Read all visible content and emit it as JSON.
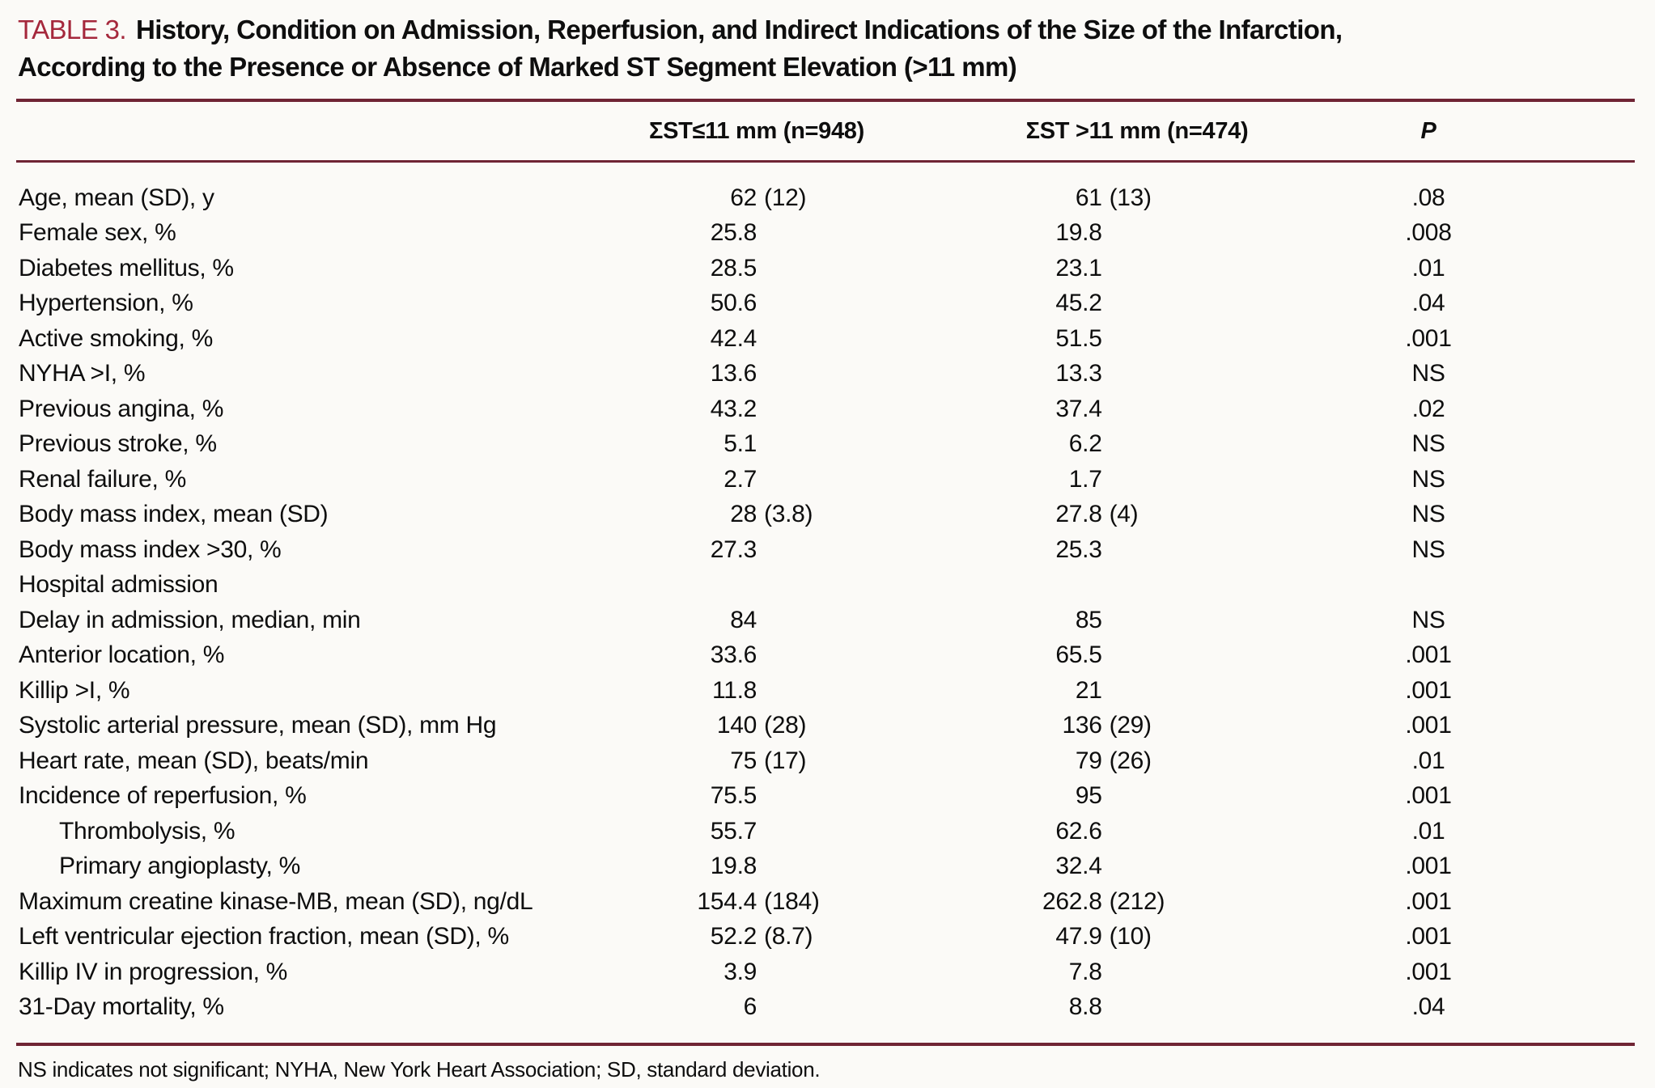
{
  "title": {
    "label": "TABLE 3.",
    "line1": "History, Condition on Admission, Reperfusion, and Indirect Indications of the Size of the Infarction,",
    "line2": "According to the Presence or Absence of Marked ST Segment Elevation (>11 mm)"
  },
  "header": {
    "group1": "ΣST≤11 mm (n=948)",
    "group2": "ΣST >11 mm (n=474)",
    "p": "P"
  },
  "rows": [
    {
      "label": "Age, mean (SD), y",
      "indent": false,
      "v1": "62",
      "sd1": "(12)",
      "v2": "61",
      "sd2": "(13)",
      "p": ".08"
    },
    {
      "label": "Female sex, %",
      "indent": false,
      "v1": "25.8",
      "sd1": "",
      "v2": "19.8",
      "sd2": "",
      "p": ".008"
    },
    {
      "label": "Diabetes mellitus, %",
      "indent": false,
      "v1": "28.5",
      "sd1": "",
      "v2": "23.1",
      "sd2": "",
      "p": ".01"
    },
    {
      "label": "Hypertension, %",
      "indent": false,
      "v1": "50.6",
      "sd1": "",
      "v2": "45.2",
      "sd2": "",
      "p": ".04"
    },
    {
      "label": "Active smoking, %",
      "indent": false,
      "v1": "42.4",
      "sd1": "",
      "v2": "51.5",
      "sd2": "",
      "p": ".001"
    },
    {
      "label": "NYHA >I, %",
      "indent": false,
      "v1": "13.6",
      "sd1": "",
      "v2": "13.3",
      "sd2": "",
      "p": "NS"
    },
    {
      "label": "Previous angina, %",
      "indent": false,
      "v1": "43.2",
      "sd1": "",
      "v2": "37.4",
      "sd2": "",
      "p": ".02"
    },
    {
      "label": "Previous stroke, %",
      "indent": false,
      "v1": "5.1",
      "sd1": "",
      "v2": "6.2",
      "sd2": "",
      "p": "NS"
    },
    {
      "label": "Renal failure, %",
      "indent": false,
      "v1": "2.7",
      "sd1": "",
      "v2": "1.7",
      "sd2": "",
      "p": "NS"
    },
    {
      "label": "Body mass index, mean (SD)",
      "indent": false,
      "v1": "28",
      "sd1": "(3.8)",
      "v2": "27.8",
      "sd2": "(4)",
      "p": "NS"
    },
    {
      "label": "Body mass index >30, %",
      "indent": false,
      "v1": "27.3",
      "sd1": "",
      "v2": "25.3",
      "sd2": "",
      "p": "NS"
    },
    {
      "label": "Hospital admission",
      "indent": false,
      "v1": "",
      "sd1": "",
      "v2": "",
      "sd2": "",
      "p": ""
    },
    {
      "label": "Delay in admission, median, min",
      "indent": false,
      "v1": "84",
      "sd1": "",
      "v2": "85",
      "sd2": "",
      "p": "NS"
    },
    {
      "label": "Anterior location, %",
      "indent": false,
      "v1": "33.6",
      "sd1": "",
      "v2": "65.5",
      "sd2": "",
      "p": ".001"
    },
    {
      "label": "Killip >I, %",
      "indent": false,
      "v1": "11.8",
      "sd1": "",
      "v2": "21",
      "sd2": "",
      "p": ".001"
    },
    {
      "label": "Systolic arterial pressure, mean (SD), mm Hg",
      "indent": false,
      "v1": "140",
      "sd1": "(28)",
      "v2": "136",
      "sd2": "(29)",
      "p": ".001"
    },
    {
      "label": "Heart rate, mean (SD), beats/min",
      "indent": false,
      "v1": "75",
      "sd1": "(17)",
      "v2": "79",
      "sd2": "(26)",
      "p": ".01"
    },
    {
      "label": "Incidence of reperfusion, %",
      "indent": false,
      "v1": "75.5",
      "sd1": "",
      "v2": "95",
      "sd2": "",
      "p": ".001"
    },
    {
      "label": "Thrombolysis, %",
      "indent": true,
      "v1": "55.7",
      "sd1": "",
      "v2": "62.6",
      "sd2": "",
      "p": ".01"
    },
    {
      "label": "Primary angioplasty, %",
      "indent": true,
      "v1": "19.8",
      "sd1": "",
      "v2": "32.4",
      "sd2": "",
      "p": ".001"
    },
    {
      "label": "Maximum creatine kinase-MB, mean (SD), ng/dL",
      "indent": false,
      "v1": "154.4",
      "sd1": "(184)",
      "v2": "262.8",
      "sd2": "(212)",
      "p": ".001"
    },
    {
      "label": "Left ventricular ejection fraction, mean (SD), %",
      "indent": false,
      "v1": "52.2",
      "sd1": "(8.7)",
      "v2": "47.9",
      "sd2": "(10)",
      "p": ".001"
    },
    {
      "label": "Killip IV in progression, %",
      "indent": false,
      "v1": "3.9",
      "sd1": "",
      "v2": "7.8",
      "sd2": "",
      "p": ".001"
    },
    {
      "label": "31-Day mortality, %",
      "indent": false,
      "v1": "6",
      "sd1": "",
      "v2": "8.8",
      "sd2": "",
      "p": ".04"
    }
  ],
  "footnote": "NS indicates not significant; NYHA, New York Heart Association; SD, standard deviation.",
  "colors": {
    "rule": "#6f2434",
    "table_number": "#a5283c",
    "text": "#0e0e0e",
    "background": "#fbfaf7"
  }
}
